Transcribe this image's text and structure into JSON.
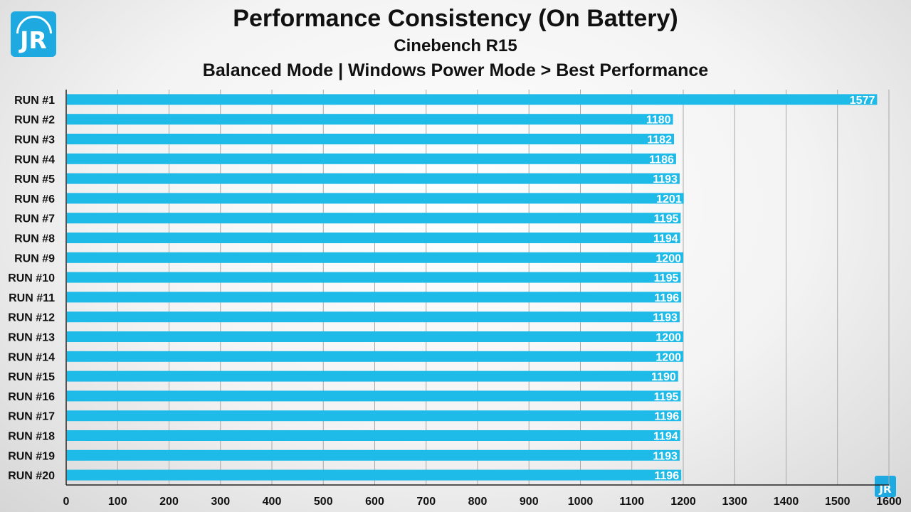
{
  "chart_data": {
    "type": "bar",
    "orientation": "horizontal",
    "title": "Performance Consistency (On Battery)",
    "subtitle": "Cinebench R15",
    "subtitle2": "Balanced Mode | Windows Power Mode > Best Performance",
    "categories": [
      "RUN #1",
      "RUN #2",
      "RUN #3",
      "RUN #4",
      "RUN #5",
      "RUN #6",
      "RUN #7",
      "RUN #8",
      "RUN #9",
      "RUN #10",
      "RUN #11",
      "RUN #12",
      "RUN #13",
      "RUN #14",
      "RUN #15",
      "RUN #16",
      "RUN #17",
      "RUN #18",
      "RUN #19",
      "RUN #20"
    ],
    "values": [
      1577,
      1180,
      1182,
      1186,
      1193,
      1201,
      1195,
      1194,
      1200,
      1195,
      1196,
      1193,
      1200,
      1200,
      1190,
      1195,
      1196,
      1194,
      1193,
      1196
    ],
    "xlim": [
      0,
      1600
    ],
    "xticks": [
      0,
      100,
      200,
      300,
      400,
      500,
      600,
      700,
      800,
      900,
      1000,
      1100,
      1200,
      1300,
      1400,
      1500,
      1600
    ],
    "grid": true,
    "bar_color": "#1ebbe8",
    "value_label_color": "#ffffff"
  },
  "branding": {
    "logo_text": "JR",
    "logo_color": "#1ea9e1"
  }
}
